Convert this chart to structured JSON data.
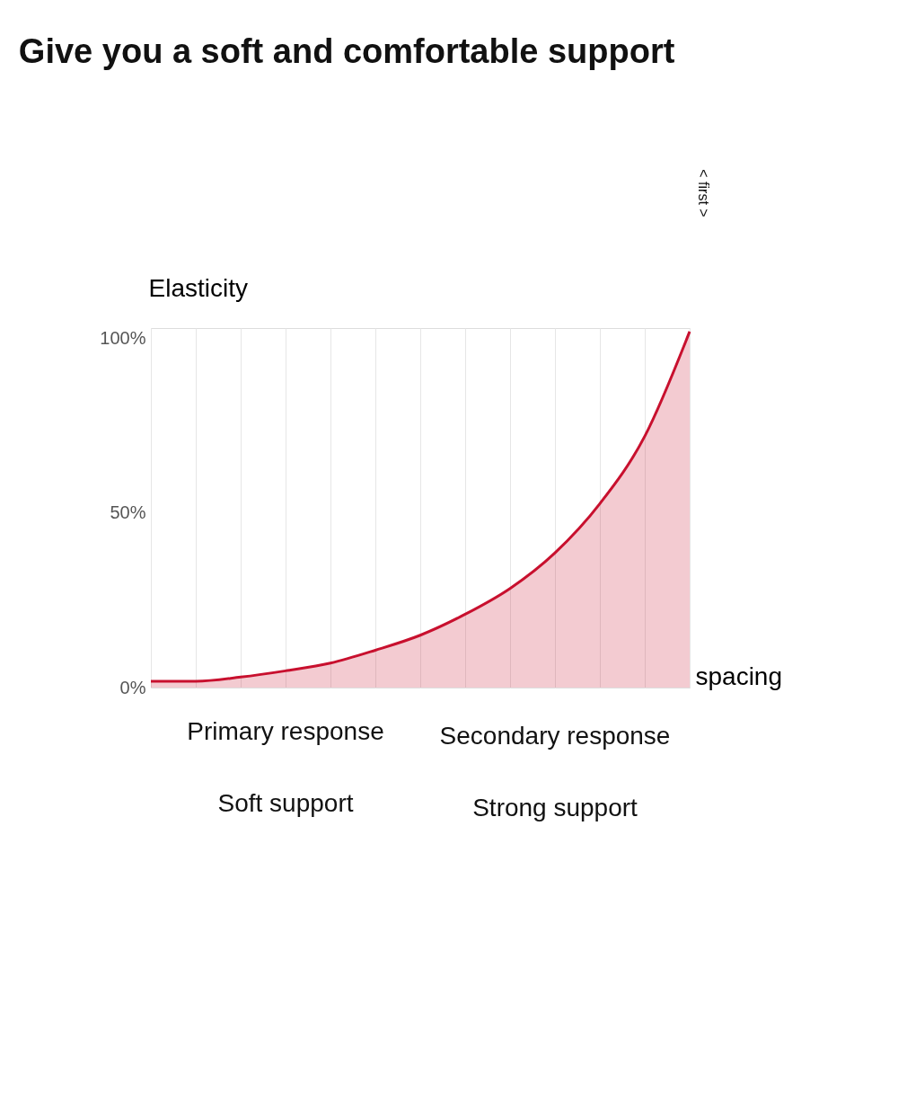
{
  "chart_data": {
    "type": "area",
    "title": "Give you a soft and comfortable support",
    "xlabel": "spacing",
    "ylabel": "Elasticity",
    "categories": [
      null,
      null,
      null,
      null,
      null,
      null,
      null,
      null,
      null,
      null,
      null,
      null,
      null
    ],
    "series": [
      {
        "color": "#c8102e",
        "values": [
          1.8,
          1.8,
          3,
          4.8,
          7,
          10.7,
          15,
          21,
          28.4,
          38.6,
          52.7,
          72,
          102
        ]
      }
    ],
    "ylim": [
      0,
      103
    ],
    "yticks": [
      {
        "value": 0,
        "label": "0%"
      },
      {
        "value": 50,
        "label": "50%"
      },
      {
        "value": 100,
        "label": "100%"
      }
    ],
    "grid": "x",
    "annotations": [
      "Primary response",
      "Secondary response",
      "Soft support",
      "Strong support",
      "< first >"
    ]
  }
}
